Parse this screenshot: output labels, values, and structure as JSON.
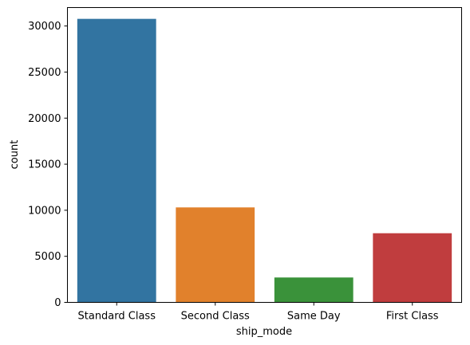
{
  "chart_data": {
    "type": "bar",
    "categories": [
      "Standard Class",
      "Second Class",
      "Same Day",
      "First Class"
    ],
    "values": [
      30775,
      10309,
      2701,
      7505
    ],
    "colors": [
      "#3274a1",
      "#e1812c",
      "#3a923a",
      "#c03d3e"
    ],
    "xlabel": "ship_mode",
    "ylabel": "count",
    "ylim": [
      0,
      32000
    ],
    "yticks": [
      0,
      5000,
      10000,
      15000,
      20000,
      25000,
      30000
    ],
    "grid": false,
    "legend": "none"
  }
}
